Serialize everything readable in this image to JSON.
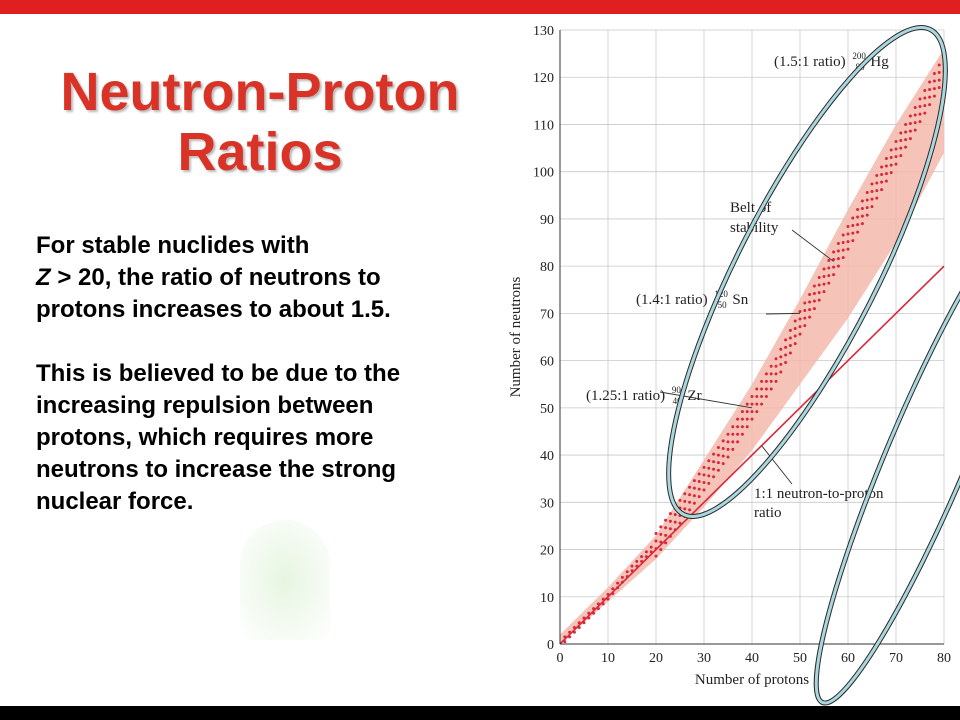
{
  "slide": {
    "title_line1": "Neutron-Proton",
    "title_line2": "Ratios",
    "para1_var": "Z",
    "para1_rest": " > 20, the ratio of neutrons to protons increases to about 1.5.",
    "para1_start": "For stable nuclides with",
    "para2": "This is believed to be due to the increasing repulsion between protons, which requires more neutrons to increase the strong nuclear force."
  },
  "colors": {
    "title": "#d93226",
    "accent_bar": "#e02020",
    "band": "#f4b9ad",
    "points": "#d8283a",
    "line": "#d8283a",
    "ellipse": "#aad7de"
  },
  "chart_data": {
    "type": "scatter",
    "xlabel": "Number of protons",
    "ylabel": "Number of neutrons",
    "xlim": [
      0,
      80
    ],
    "ylim": [
      0,
      130
    ],
    "xticks": [
      0,
      10,
      20,
      30,
      40,
      50,
      60,
      70,
      80
    ],
    "yticks": [
      0,
      10,
      20,
      30,
      40,
      50,
      60,
      70,
      80,
      90,
      100,
      110,
      120,
      130
    ],
    "grid": true,
    "band_label": "Belt of stability",
    "line": {
      "label": "1:1 neutron-to-proton ratio",
      "slope": 1
    },
    "annotations": [
      {
        "text": "(1.5:1 ratio)",
        "nuclide": "Hg",
        "mass": "200",
        "z": "80",
        "x": 80,
        "y": 120
      },
      {
        "text": "(1.4:1 ratio)",
        "nuclide": "Sn",
        "mass": "120",
        "z": "50",
        "x": 50,
        "y": 70
      },
      {
        "text": "(1.25:1 ratio)",
        "nuclide": "Zr",
        "mass": "90",
        "z": "40",
        "x": 40,
        "y": 50
      }
    ],
    "band": {
      "z": [
        0,
        10,
        20,
        30,
        40,
        50,
        60,
        70,
        80
      ],
      "n_low": [
        0,
        9,
        18,
        29,
        41,
        55,
        69,
        85,
        104
      ],
      "n_high": [
        2,
        12,
        23,
        39,
        55,
        73,
        92,
        110,
        126
      ]
    },
    "stable_trend": {
      "z": [
        1,
        5,
        10,
        15,
        20,
        25,
        30,
        35,
        40,
        45,
        50,
        55,
        60,
        65,
        70,
        75,
        80
      ],
      "n": [
        1,
        5,
        10,
        16,
        21,
        28,
        35,
        42,
        50,
        58,
        68,
        77,
        86,
        95,
        104,
        113,
        122
      ]
    }
  }
}
